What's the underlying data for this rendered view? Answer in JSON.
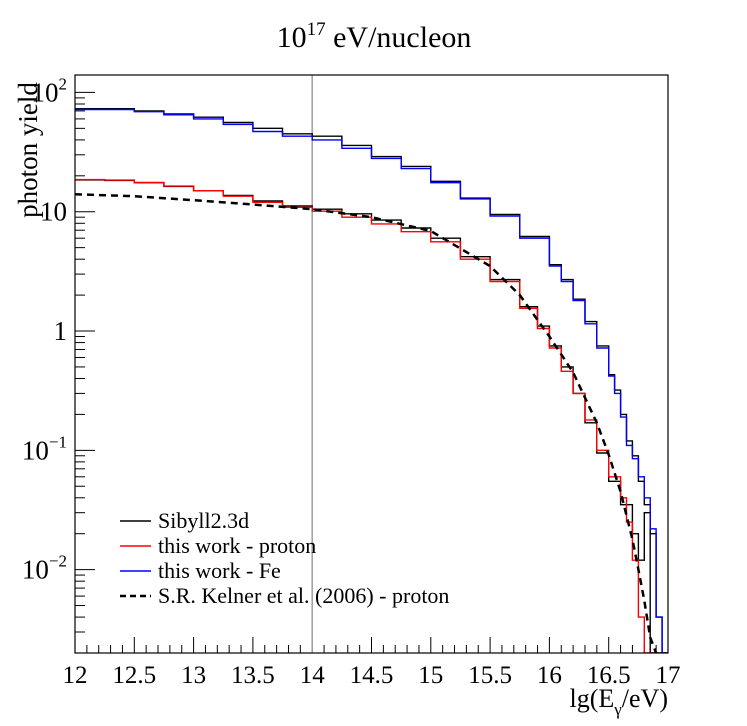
{
  "chart_data": {
    "type": "line",
    "title": {
      "base": "10",
      "exp": "17",
      "rest": " eV/nucleon"
    },
    "xlabel": {
      "pre": "lg(E",
      "sub": "γ",
      "post": "/eV)"
    },
    "ylabel": "photon yield",
    "xlim": [
      12,
      17
    ],
    "ylim": [
      0.002,
      140
    ],
    "yscale": "log",
    "x_ticks": [
      "12",
      "12.5",
      "13",
      "13.5",
      "14",
      "14.5",
      "15",
      "15.5",
      "16",
      "16.5",
      "17"
    ],
    "y_ticks": [
      {
        "value": 100,
        "base": "10",
        "exp": "2"
      },
      {
        "value": 10,
        "base": "10",
        "exp": ""
      },
      {
        "value": 1,
        "base": "1",
        "exp": ""
      },
      {
        "value": 0.1,
        "base": "10",
        "exp": "−1"
      },
      {
        "value": 0.01,
        "base": "10",
        "exp": "−2"
      }
    ],
    "reference_line": {
      "x": 14,
      "color": "#a0a0a0"
    },
    "series": [
      {
        "name": "Sibyll2.3d",
        "color": "#000000",
        "style": "step",
        "x": [
          12.0,
          12.25,
          12.5,
          12.75,
          13.0,
          13.25,
          13.5,
          13.75,
          14.0,
          14.25,
          14.5,
          14.75,
          15.0,
          15.25,
          15.5,
          15.75,
          16.0,
          16.1,
          16.2,
          16.3,
          16.4,
          16.5,
          16.55,
          16.6,
          16.65,
          16.7,
          16.75,
          16.8,
          16.85,
          16.9,
          16.95,
          17.0
        ],
        "y": [
          73,
          73,
          70,
          66,
          62,
          56,
          50,
          45,
          43,
          36,
          29,
          24,
          18,
          13,
          9.5,
          6.2,
          3.6,
          2.7,
          1.85,
          1.2,
          0.75,
          0.43,
          0.32,
          0.2,
          0.12,
          0.09,
          0.055,
          0.035,
          0.02,
          0.004,
          0.002,
          0.002
        ]
      },
      {
        "name": "Sibyll2.3d",
        "color": "#000000",
        "style": "step",
        "x": [
          12.0,
          12.25,
          12.5,
          12.75,
          13.0,
          13.25,
          13.5,
          13.75,
          14.0,
          14.25,
          14.5,
          14.75,
          15.0,
          15.25,
          15.5,
          15.75,
          15.9,
          16.0,
          16.1,
          16.2,
          16.3,
          16.4,
          16.5,
          16.6,
          16.7,
          16.75,
          16.8,
          16.85,
          16.9,
          17.0
        ],
        "y": [
          18.5,
          18.3,
          17.5,
          16.3,
          15.0,
          13.7,
          12.3,
          11.2,
          10.5,
          9.6,
          8.5,
          7.3,
          6.0,
          4.2,
          2.7,
          1.6,
          1.1,
          0.75,
          0.5,
          0.3,
          0.17,
          0.095,
          0.055,
          0.035,
          0.02,
          0.012,
          0.03,
          0.002,
          0.002,
          0.002
        ]
      },
      {
        "name": "this work - proton",
        "color": "#ff0000",
        "style": "step",
        "x": [
          12.0,
          12.25,
          12.5,
          12.75,
          13.0,
          13.25,
          13.5,
          13.75,
          14.0,
          14.25,
          14.5,
          14.75,
          15.0,
          15.25,
          15.5,
          15.75,
          15.9,
          16.0,
          16.1,
          16.2,
          16.3,
          16.4,
          16.5,
          16.6,
          16.65,
          16.7,
          16.75,
          16.8,
          16.85,
          17.0
        ],
        "y": [
          18.6,
          18.4,
          17.6,
          16.4,
          15.0,
          13.5,
          12.0,
          10.9,
          10.1,
          9.0,
          7.9,
          6.8,
          5.6,
          4.0,
          2.6,
          1.55,
          1.05,
          0.72,
          0.46,
          0.3,
          0.18,
          0.1,
          0.06,
          0.04,
          0.025,
          0.012,
          0.004,
          0.002,
          0.002,
          0.002
        ]
      },
      {
        "name": "this work - Fe",
        "color": "#0000ff",
        "style": "step",
        "x": [
          12.0,
          12.25,
          12.5,
          12.75,
          13.0,
          13.25,
          13.5,
          13.75,
          14.0,
          14.25,
          14.5,
          14.75,
          15.0,
          15.25,
          15.5,
          15.75,
          16.0,
          16.1,
          16.2,
          16.3,
          16.4,
          16.5,
          16.55,
          16.6,
          16.65,
          16.7,
          16.75,
          16.8,
          16.85,
          16.9,
          16.95,
          17.0
        ],
        "y": [
          72,
          72,
          69,
          65,
          60,
          54,
          47,
          43,
          40,
          34,
          28,
          23,
          17.5,
          12.8,
          9.2,
          6.0,
          3.5,
          2.6,
          1.8,
          1.15,
          0.72,
          0.42,
          0.3,
          0.19,
          0.11,
          0.085,
          0.06,
          0.04,
          0.022,
          0.004,
          0.002,
          0.002
        ]
      },
      {
        "name": "S.R. Kelner et al. (2006) - proton",
        "color": "#000000",
        "style": "dashed",
        "x": [
          12.0,
          12.5,
          13.0,
          13.5,
          14.0,
          14.5,
          15.0,
          15.5,
          15.75,
          16.0,
          16.2,
          16.4,
          16.5,
          16.6,
          16.7,
          16.75,
          16.8,
          16.85,
          16.9
        ],
        "y": [
          14,
          13.5,
          12.5,
          11.5,
          10.5,
          9.0,
          6.9,
          3.5,
          2.0,
          0.9,
          0.45,
          0.17,
          0.092,
          0.045,
          0.018,
          0.01,
          0.0055,
          0.0027,
          0.002
        ]
      }
    ],
    "legend": {
      "placement": "bottom-left",
      "entries": [
        {
          "label": "Sibyll2.3d",
          "color": "#000000",
          "dashed": false
        },
        {
          "label": "this work - proton",
          "color": "#ff0000",
          "dashed": false
        },
        {
          "label": "this work - Fe",
          "color": "#0000ff",
          "dashed": false
        },
        {
          "label": "S.R. Kelner et al. (2006) - proton",
          "color": "#000000",
          "dashed": true
        }
      ]
    }
  }
}
